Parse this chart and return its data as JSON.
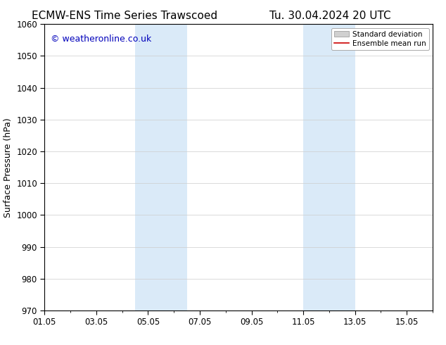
{
  "title_left": "ECMW-ENS Time Series Trawscoed",
  "title_right": "Tu. 30.04.2024 20 UTC",
  "ylabel": "Surface Pressure (hPa)",
  "ylim": [
    970,
    1060
  ],
  "yticks": [
    970,
    980,
    990,
    1000,
    1010,
    1020,
    1030,
    1040,
    1050,
    1060
  ],
  "xlim": [
    0,
    15
  ],
  "xtick_labels": [
    "01.05",
    "03.05",
    "05.05",
    "07.05",
    "09.05",
    "11.05",
    "13.05",
    "15.05"
  ],
  "xtick_positions": [
    0,
    2,
    4,
    6,
    8,
    10,
    12,
    14
  ],
  "shaded_bands": [
    {
      "start": 3.5,
      "end": 5.5
    },
    {
      "start": 10.0,
      "end": 12.0
    }
  ],
  "shade_color": "#daeaf8",
  "shade_alpha": 1.0,
  "watermark_text": "© weatheronline.co.uk",
  "watermark_color": "#0000bb",
  "watermark_fontsize": 9,
  "legend_std_label": "Standard deviation",
  "legend_mean_label": "Ensemble mean run",
  "legend_std_color": "#d0d0d0",
  "legend_mean_color": "#cc0000",
  "bg_color": "#ffffff",
  "spine_color": "#000000",
  "title_fontsize": 11,
  "ylabel_fontsize": 9,
  "tick_fontsize": 8.5,
  "legend_fontsize": 7.5
}
